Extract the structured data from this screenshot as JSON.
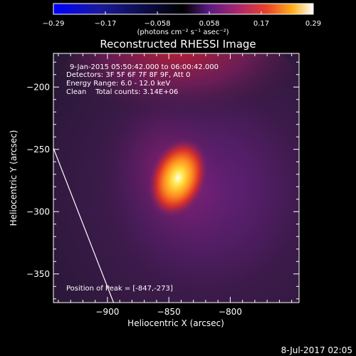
{
  "chart_data": {
    "type": "heatmap",
    "title": "Reconstructed RHESSI Image",
    "xlabel": "Heliocentric X (arcsec)",
    "ylabel": "Heliocentric Y (arcsec)",
    "xlim": [
      -944,
      -744
    ],
    "ylim": [
      -373,
      -173
    ],
    "x_ticks": [
      -900,
      -850,
      -800
    ],
    "y_ticks": [
      -350,
      -300,
      -250,
      -200
    ],
    "colorbar": {
      "min": -0.29,
      "max": 0.29,
      "ticks": [
        "-0.29",
        "-0.17",
        "-0.058",
        "0.058",
        "0.17",
        "0.29"
      ],
      "label": "(photons cm⁻² s⁻¹ asec⁻²)",
      "colormap": [
        "#0000ff",
        "#000000",
        "#7a1fa8",
        "#e8302a",
        "#ffa51c",
        "#ffffff"
      ]
    },
    "annotations": [
      "9-Jan-2015 05:50:42.000 to 06:00:42.000",
      "Detectors: 3F 5F 6F 7F 8F 9F, Att 0",
      "Energy Range: 6.0 - 12.0 keV",
      "Clean    Total counts: 3.14E+06"
    ],
    "peak": {
      "label": "Position of Peak = [-847,-273]",
      "x": -847,
      "y": -273
    },
    "grid": false,
    "limb_line": [
      [
        -944,
        -249
      ],
      [
        -895,
        -373
      ]
    ]
  },
  "footer": {
    "date": "8-Jul-2017 02:05"
  }
}
